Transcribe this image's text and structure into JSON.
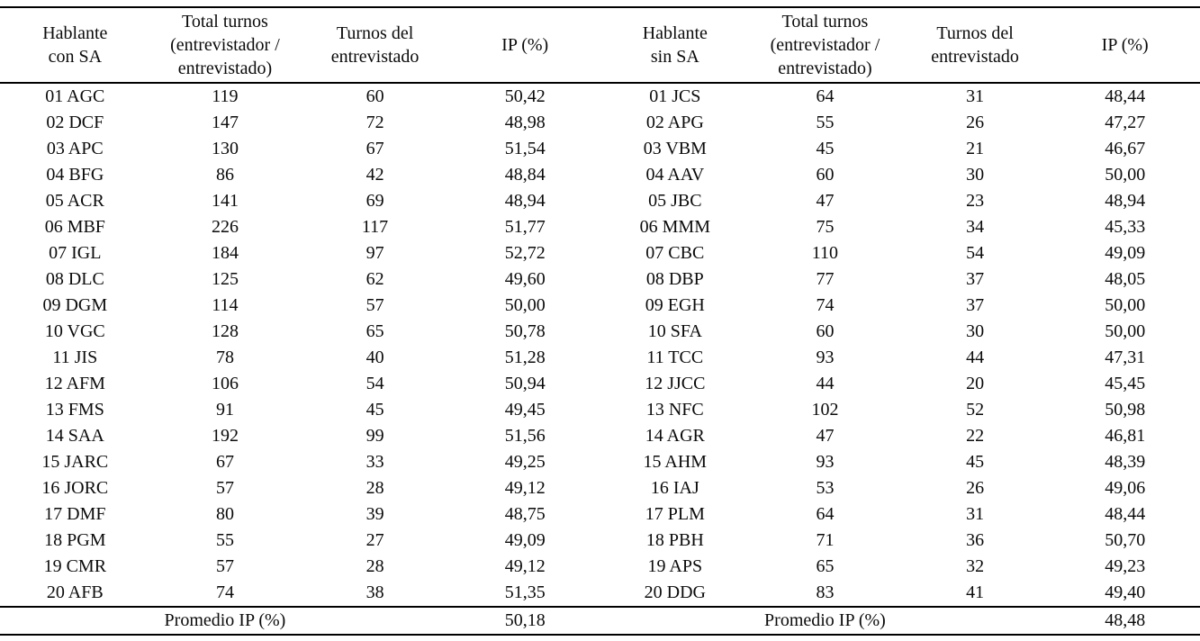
{
  "table": {
    "headers": [
      "Hablante\ncon SA",
      "Total turnos\n(entrevistador /\nentrevistado)",
      "Turnos del\nentrevistado",
      "IP (%)",
      "Hablante\nsin SA",
      "Total turnos\n(entrevistador /\nentrevistado)",
      "Turnos del\nentrevistado",
      "IP (%)"
    ],
    "rows": [
      [
        "01 AGC",
        "119",
        "60",
        "50,42",
        "01 JCS",
        "64",
        "31",
        "48,44"
      ],
      [
        "02 DCF",
        "147",
        "72",
        "48,98",
        "02 APG",
        "55",
        "26",
        "47,27"
      ],
      [
        "03 APC",
        "130",
        "67",
        "51,54",
        "03 VBM",
        "45",
        "21",
        "46,67"
      ],
      [
        "04 BFG",
        "86",
        "42",
        "48,84",
        "04 AAV",
        "60",
        "30",
        "50,00"
      ],
      [
        "05 ACR",
        "141",
        "69",
        "48,94",
        "05 JBC",
        "47",
        "23",
        "48,94"
      ],
      [
        "06 MBF",
        "226",
        "117",
        "51,77",
        "06 MMM",
        "75",
        "34",
        "45,33"
      ],
      [
        "07 IGL",
        "184",
        "97",
        "52,72",
        "07 CBC",
        "110",
        "54",
        "49,09"
      ],
      [
        "08 DLC",
        "125",
        "62",
        "49,60",
        "08 DBP",
        "77",
        "37",
        "48,05"
      ],
      [
        "09 DGM",
        "114",
        "57",
        "50,00",
        "09 EGH",
        "74",
        "37",
        "50,00"
      ],
      [
        "10 VGC",
        "128",
        "65",
        "50,78",
        "10 SFA",
        "60",
        "30",
        "50,00"
      ],
      [
        "11 JIS",
        "78",
        "40",
        "51,28",
        "11 TCC",
        "93",
        "44",
        "47,31"
      ],
      [
        "12 AFM",
        "106",
        "54",
        "50,94",
        "12 JJCC",
        "44",
        "20",
        "45,45"
      ],
      [
        "13 FMS",
        "91",
        "45",
        "49,45",
        "13 NFC",
        "102",
        "52",
        "50,98"
      ],
      [
        "14 SAA",
        "192",
        "99",
        "51,56",
        "14 AGR",
        "47",
        "22",
        "46,81"
      ],
      [
        "15 JARC",
        "67",
        "33",
        "49,25",
        "15 AHM",
        "93",
        "45",
        "48,39"
      ],
      [
        "16 JORC",
        "57",
        "28",
        "49,12",
        "16 IAJ",
        "53",
        "26",
        "49,06"
      ],
      [
        "17 DMF",
        "80",
        "39",
        "48,75",
        "17 PLM",
        "64",
        "31",
        "48,44"
      ],
      [
        "18 PGM",
        "55",
        "27",
        "49,09",
        "18 PBH",
        "71",
        "36",
        "50,70"
      ],
      [
        "19 CMR",
        "57",
        "28",
        "49,12",
        "19 APS",
        "65",
        "32",
        "49,23"
      ],
      [
        "20 AFB",
        "74",
        "38",
        "51,35",
        "20 DDG",
        "83",
        "41",
        "49,40"
      ]
    ],
    "footer": {
      "left_label": "Promedio IP (%)",
      "left_value": "50,18",
      "right_label": "Promedio IP (%)",
      "right_value": "48,48"
    }
  }
}
